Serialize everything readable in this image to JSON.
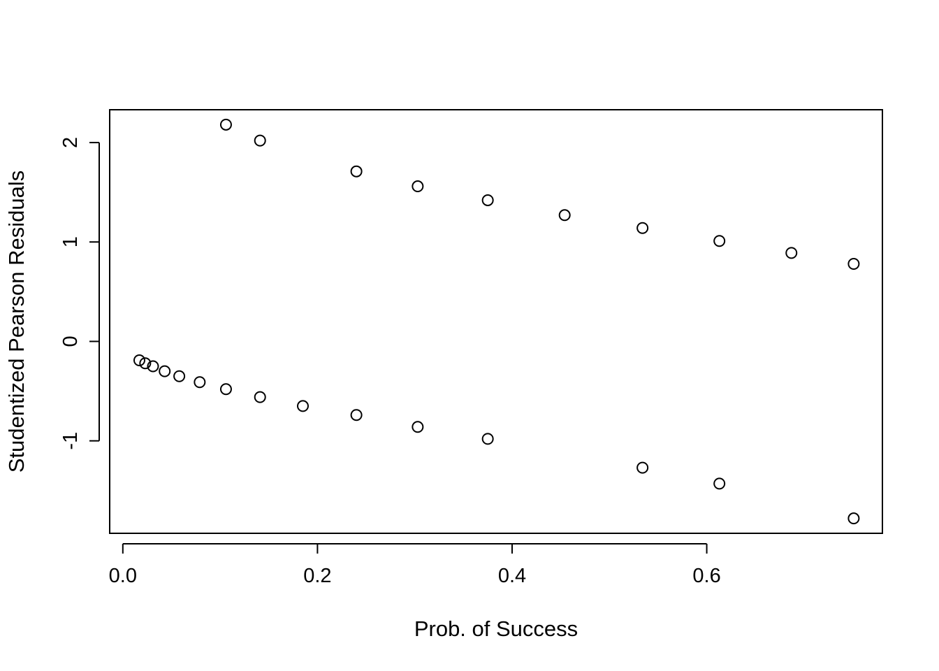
{
  "chart_data": {
    "type": "scatter",
    "title": "",
    "xlabel": "Prob. of Success",
    "ylabel": "Studentized Pearson Residuals",
    "xlim": [
      -0.0135,
      0.7805
    ],
    "ylim": [
      -1.93,
      2.33
    ],
    "x_ticks": [
      0.0,
      0.2,
      0.4,
      0.6
    ],
    "x_tick_labels": [
      "0.0",
      "0.2",
      "0.4",
      "0.6"
    ],
    "y_ticks": [
      -1,
      0,
      1,
      2
    ],
    "y_tick_labels": [
      "-1",
      "0",
      "1",
      "2"
    ],
    "grid": false,
    "legend": "none",
    "marker": "open-circle",
    "series": [
      {
        "x": [
          0.106,
          0.141,
          0.24,
          0.303,
          0.375,
          0.454,
          0.534,
          0.613,
          0.687,
          0.751,
          0.017,
          0.023,
          0.031,
          0.043,
          0.058,
          0.079,
          0.106,
          0.141,
          0.185,
          0.24,
          0.303,
          0.375,
          0.534,
          0.613,
          0.751
        ],
        "y": [
          2.18,
          2.02,
          1.71,
          1.56,
          1.42,
          1.27,
          1.14,
          1.01,
          0.89,
          0.78,
          -0.19,
          -0.22,
          -0.25,
          -0.3,
          -0.35,
          -0.41,
          -0.48,
          -0.56,
          -0.65,
          -0.74,
          -0.86,
          -0.98,
          -1.27,
          -1.43,
          -1.78
        ]
      }
    ]
  }
}
